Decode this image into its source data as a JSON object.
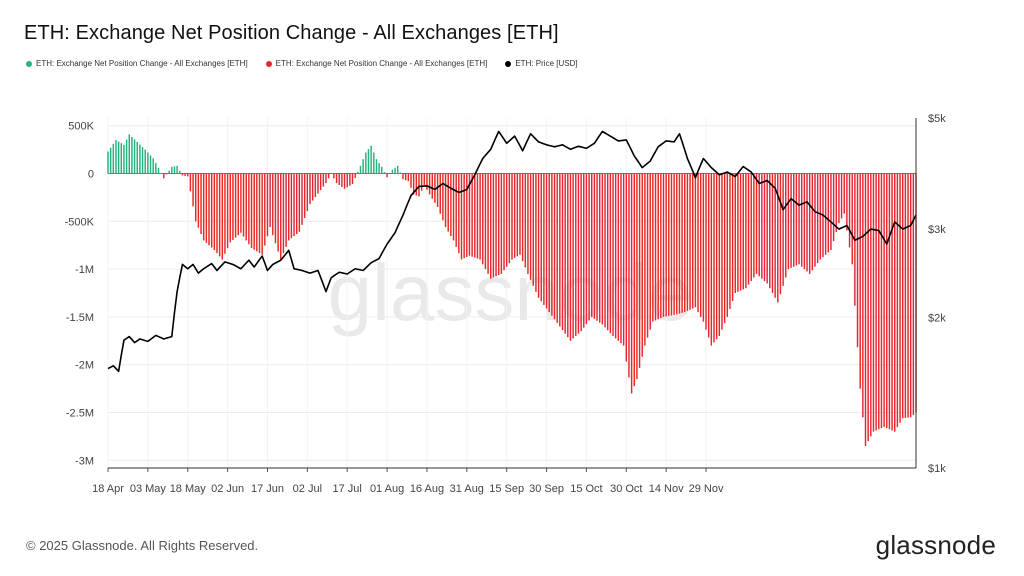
{
  "title": "ETH: Exchange Net Position Change - All Exchanges [ETH]",
  "legend": [
    {
      "label": "ETH: Exchange Net Position Change - All Exchanges [ETH]",
      "color": "#26b37c"
    },
    {
      "label": "ETH: Exchange Net Position Change - All Exchanges [ETH]",
      "color": "#e6282b"
    },
    {
      "label": "ETH: Price [USD]",
      "color": "#000000"
    }
  ],
  "footer": "© 2025 Glassnode. All Rights Reserved.",
  "brand": "glassnode",
  "watermark": "glassnode",
  "colors": {
    "positive": "#26b37c",
    "negative": "#e6282b",
    "price": "#000000",
    "grid": "#ececec"
  },
  "chart_data": {
    "type": "bar",
    "title": "ETH: Exchange Net Position Change - All Exchanges [ETH]",
    "x_ticks": [
      "18 Apr",
      "03 May",
      "18 May",
      "02 Jun",
      "17 Jun",
      "02 Jul",
      "17 Jul",
      "01 Aug",
      "16 Aug",
      "31 Aug",
      "15 Sep",
      "30 Sep",
      "15 Oct",
      "30 Oct",
      "14 Nov",
      "29 Nov"
    ],
    "y_ticks": [
      {
        "value": 500000,
        "label": "500K"
      },
      {
        "value": 0,
        "label": "0"
      },
      {
        "value": -500000,
        "label": "-500K"
      },
      {
        "value": -1000000,
        "label": "-1M"
      },
      {
        "value": -1500000,
        "label": "-1.5M"
      },
      {
        "value": -2000000,
        "label": "-2M"
      },
      {
        "value": -2500000,
        "label": "-2.5M"
      },
      {
        "value": -3000000,
        "label": "-3M"
      }
    ],
    "y2_ticks": [
      {
        "value": 5000,
        "label": "$5k"
      },
      {
        "value": 3000,
        "label": "$3k"
      },
      {
        "value": 2000,
        "label": "$2k"
      },
      {
        "value": 1000,
        "label": "$1k"
      }
    ],
    "ylim": [
      -3100000,
      600000
    ],
    "y2_scale": "log",
    "y2lim": [
      1000,
      5000
    ],
    "grid": true,
    "series": [
      {
        "name": "ETH: Exchange Net Position Change - All Exchanges [ETH]",
        "type": "bar",
        "anchors": [
          [
            0,
            230000
          ],
          [
            3,
            350000
          ],
          [
            6,
            300000
          ],
          [
            8,
            410000
          ],
          [
            11,
            330000
          ],
          [
            14,
            250000
          ],
          [
            17,
            160000
          ],
          [
            19,
            60000
          ],
          [
            21,
            -50000
          ],
          [
            24,
            70000
          ],
          [
            26,
            80000
          ],
          [
            28,
            -20000
          ],
          [
            30,
            -30000
          ],
          [
            33,
            -500000
          ],
          [
            36,
            -700000
          ],
          [
            40,
            -800000
          ],
          [
            43,
            -900000
          ],
          [
            46,
            -720000
          ],
          [
            50,
            -620000
          ],
          [
            54,
            -780000
          ],
          [
            58,
            -850000
          ],
          [
            61,
            -560000
          ],
          [
            65,
            -900000
          ],
          [
            68,
            -700000
          ],
          [
            72,
            -610000
          ],
          [
            76,
            -320000
          ],
          [
            79,
            -210000
          ],
          [
            82,
            -100000
          ],
          [
            84,
            0
          ],
          [
            86,
            -100000
          ],
          [
            89,
            -160000
          ],
          [
            92,
            -110000
          ],
          [
            95,
            80000
          ],
          [
            97,
            220000
          ],
          [
            99,
            290000
          ],
          [
            101,
            150000
          ],
          [
            103,
            70000
          ],
          [
            105,
            -40000
          ],
          [
            107,
            40000
          ],
          [
            109,
            80000
          ],
          [
            111,
            -60000
          ],
          [
            113,
            -80000
          ],
          [
            115,
            -220000
          ],
          [
            117,
            -240000
          ],
          [
            119,
            -120000
          ],
          [
            121,
            -220000
          ],
          [
            124,
            -350000
          ],
          [
            127,
            -560000
          ],
          [
            130,
            -700000
          ],
          [
            133,
            -900000
          ],
          [
            136,
            -860000
          ],
          [
            140,
            -900000
          ],
          [
            144,
            -1100000
          ],
          [
            148,
            -1050000
          ],
          [
            152,
            -900000
          ],
          [
            155,
            -850000
          ],
          [
            158,
            -1050000
          ],
          [
            162,
            -1300000
          ],
          [
            166,
            -1450000
          ],
          [
            170,
            -1600000
          ],
          [
            174,
            -1750000
          ],
          [
            178,
            -1650000
          ],
          [
            182,
            -1500000
          ],
          [
            186,
            -1580000
          ],
          [
            190,
            -1700000
          ],
          [
            194,
            -1800000
          ],
          [
            197,
            -2300000
          ],
          [
            199,
            -2150000
          ],
          [
            202,
            -1800000
          ],
          [
            205,
            -1550000
          ],
          [
            209,
            -1500000
          ],
          [
            213,
            -1480000
          ],
          [
            217,
            -1450000
          ],
          [
            221,
            -1400000
          ],
          [
            224,
            -1550000
          ],
          [
            227,
            -1800000
          ],
          [
            230,
            -1700000
          ],
          [
            233,
            -1500000
          ],
          [
            236,
            -1250000
          ],
          [
            240,
            -1200000
          ],
          [
            244,
            -1050000
          ],
          [
            248,
            -1150000
          ],
          [
            252,
            -1350000
          ],
          [
            256,
            -1000000
          ],
          [
            260,
            -950000
          ],
          [
            264,
            -1050000
          ],
          [
            268,
            -900000
          ],
          [
            272,
            -800000
          ],
          [
            275,
            -520000
          ],
          [
            277,
            -420000
          ],
          [
            280,
            -950000
          ],
          [
            283,
            -2250000
          ],
          [
            285,
            -2850000
          ],
          [
            288,
            -2700000
          ],
          [
            292,
            -2650000
          ],
          [
            296,
            -2700000
          ],
          [
            299,
            -2560000
          ],
          [
            302,
            -2550000
          ],
          [
            304,
            -2500000
          ]
        ]
      },
      {
        "name": "ETH: Price [USD]",
        "type": "line",
        "axis": "right",
        "anchors": [
          [
            0,
            1580
          ],
          [
            2,
            1600
          ],
          [
            4,
            1560
          ],
          [
            6,
            1800
          ],
          [
            8,
            1830
          ],
          [
            10,
            1780
          ],
          [
            12,
            1810
          ],
          [
            15,
            1790
          ],
          [
            18,
            1840
          ],
          [
            21,
            1810
          ],
          [
            24,
            1830
          ],
          [
            26,
            2250
          ],
          [
            28,
            2550
          ],
          [
            30,
            2500
          ],
          [
            32,
            2550
          ],
          [
            34,
            2450
          ],
          [
            36,
            2500
          ],
          [
            39,
            2560
          ],
          [
            41,
            2480
          ],
          [
            44,
            2580
          ],
          [
            47,
            2550
          ],
          [
            50,
            2500
          ],
          [
            53,
            2600
          ],
          [
            55,
            2520
          ],
          [
            58,
            2650
          ],
          [
            60,
            2480
          ],
          [
            62,
            2550
          ],
          [
            65,
            2600
          ],
          [
            68,
            2720
          ],
          [
            70,
            2500
          ],
          [
            73,
            2480
          ],
          [
            76,
            2450
          ],
          [
            79,
            2480
          ],
          [
            82,
            2250
          ],
          [
            84,
            2400
          ],
          [
            87,
            2460
          ],
          [
            90,
            2440
          ],
          [
            93,
            2500
          ],
          [
            96,
            2480
          ],
          [
            99,
            2570
          ],
          [
            102,
            2620
          ],
          [
            105,
            2800
          ],
          [
            108,
            2950
          ],
          [
            111,
            3200
          ],
          [
            114,
            3500
          ],
          [
            117,
            3650
          ],
          [
            120,
            3660
          ],
          [
            123,
            3600
          ],
          [
            126,
            3700
          ],
          [
            129,
            3620
          ],
          [
            132,
            3550
          ],
          [
            135,
            3600
          ],
          [
            138,
            3850
          ],
          [
            141,
            4150
          ],
          [
            144,
            4330
          ],
          [
            147,
            4700
          ],
          [
            150,
            4450
          ],
          [
            153,
            4600
          ],
          [
            156,
            4300
          ],
          [
            159,
            4650
          ],
          [
            162,
            4480
          ],
          [
            165,
            4420
          ],
          [
            168,
            4380
          ],
          [
            171,
            4420
          ],
          [
            174,
            4330
          ],
          [
            177,
            4390
          ],
          [
            180,
            4350
          ],
          [
            183,
            4450
          ],
          [
            186,
            4700
          ],
          [
            189,
            4600
          ],
          [
            192,
            4500
          ],
          [
            195,
            4520
          ],
          [
            198,
            4200
          ],
          [
            201,
            3980
          ],
          [
            204,
            4100
          ],
          [
            207,
            4380
          ],
          [
            210,
            4500
          ],
          [
            213,
            4480
          ],
          [
            215,
            4650
          ],
          [
            218,
            4150
          ],
          [
            221,
            3800
          ],
          [
            224,
            4150
          ],
          [
            227,
            3980
          ],
          [
            230,
            3850
          ],
          [
            233,
            3900
          ],
          [
            236,
            3820
          ],
          [
            239,
            4000
          ],
          [
            242,
            3900
          ],
          [
            245,
            3700
          ],
          [
            248,
            3750
          ],
          [
            251,
            3620
          ],
          [
            254,
            3280
          ],
          [
            257,
            3450
          ],
          [
            260,
            3350
          ],
          [
            263,
            3400
          ],
          [
            266,
            3250
          ],
          [
            269,
            3200
          ],
          [
            272,
            3100
          ],
          [
            275,
            3000
          ],
          [
            278,
            3050
          ],
          [
            281,
            2850
          ],
          [
            284,
            2900
          ],
          [
            287,
            3000
          ],
          [
            290,
            2980
          ],
          [
            293,
            2800
          ],
          [
            296,
            3100
          ],
          [
            299,
            3000
          ],
          [
            302,
            3050
          ],
          [
            304,
            3200
          ]
        ]
      }
    ]
  }
}
